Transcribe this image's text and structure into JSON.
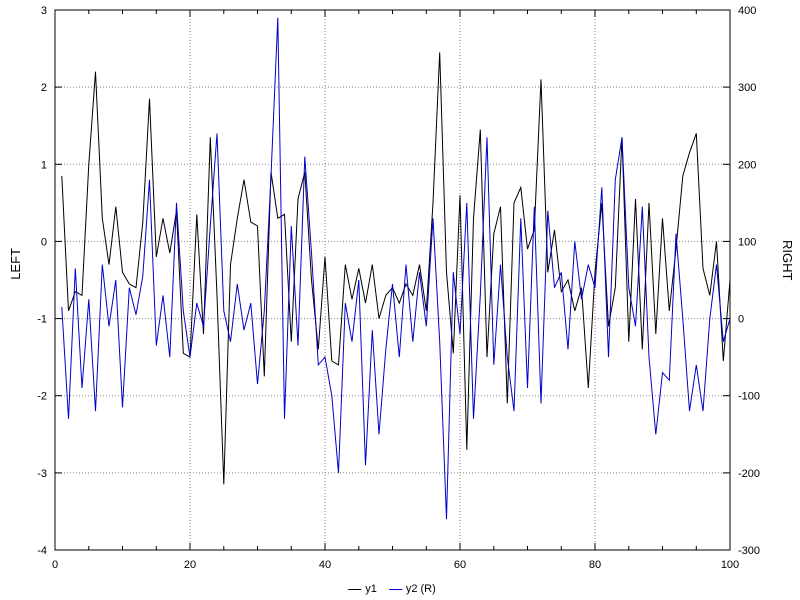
{
  "chart_data": {
    "type": "line",
    "x": [
      1,
      2,
      3,
      4,
      5,
      6,
      7,
      8,
      9,
      10,
      11,
      12,
      13,
      14,
      15,
      16,
      17,
      18,
      19,
      20,
      21,
      22,
      23,
      24,
      25,
      26,
      27,
      28,
      29,
      30,
      31,
      32,
      33,
      34,
      35,
      36,
      37,
      38,
      39,
      40,
      41,
      42,
      43,
      44,
      45,
      46,
      47,
      48,
      49,
      50,
      51,
      52,
      53,
      54,
      55,
      56,
      57,
      58,
      59,
      60,
      61,
      62,
      63,
      64,
      65,
      66,
      67,
      68,
      69,
      70,
      71,
      72,
      73,
      74,
      75,
      76,
      77,
      78,
      79,
      80,
      81,
      82,
      83,
      84,
      85,
      86,
      87,
      88,
      89,
      90,
      91,
      92,
      93,
      94,
      95,
      96,
      97,
      98,
      99,
      100
    ],
    "series": [
      {
        "name": "y1",
        "axis": "left",
        "color": "#000000",
        "values": [
          0.85,
          -0.9,
          -0.65,
          -0.7,
          1.0,
          2.2,
          0.3,
          -0.3,
          0.45,
          -0.4,
          -0.55,
          -0.6,
          0.25,
          1.85,
          -0.2,
          0.3,
          -0.15,
          0.4,
          -1.45,
          -1.5,
          0.35,
          -1.2,
          1.35,
          -0.7,
          -3.15,
          -0.3,
          0.3,
          0.8,
          0.25,
          0.2,
          -1.75,
          0.9,
          0.3,
          0.35,
          -1.3,
          0.55,
          0.9,
          -0.5,
          -1.4,
          -0.2,
          -1.55,
          -1.6,
          -0.3,
          -0.75,
          -0.35,
          -0.8,
          -0.3,
          -1.0,
          -0.7,
          -0.6,
          -0.8,
          -0.55,
          -0.7,
          -0.3,
          -0.9,
          0.5,
          2.45,
          -0.4,
          -1.45,
          0.6,
          -2.7,
          0.3,
          1.45,
          -1.5,
          0.1,
          0.45,
          -2.1,
          0.5,
          0.7,
          -0.1,
          0.15,
          2.1,
          -0.4,
          0.15,
          -0.65,
          -0.5,
          -0.9,
          -0.6,
          -1.9,
          -0.4,
          0.5,
          -1.1,
          -0.6,
          1.35,
          -1.3,
          0.55,
          -1.4,
          0.5,
          -1.2,
          0.3,
          -0.9,
          -0.1,
          0.85,
          1.15,
          1.4,
          -0.35,
          -0.7,
          0.0,
          -1.55,
          -0.5
        ]
      },
      {
        "name": "y2 (R)",
        "axis": "right",
        "color": "#0000cc",
        "values": [
          15,
          -130,
          65,
          -90,
          25,
          -120,
          70,
          -10,
          50,
          -115,
          40,
          5,
          55,
          180,
          -35,
          30,
          -50,
          150,
          10,
          -50,
          20,
          -10,
          120,
          240,
          10,
          -30,
          45,
          -15,
          20,
          -85,
          10,
          185,
          390,
          -130,
          120,
          -35,
          210,
          85,
          -60,
          -50,
          -100,
          -200,
          20,
          -30,
          50,
          -190,
          -15,
          -150,
          -40,
          45,
          -50,
          70,
          -30,
          60,
          -10,
          130,
          -30,
          -260,
          60,
          -20,
          150,
          -130,
          30,
          235,
          -60,
          70,
          -50,
          -120,
          130,
          -90,
          145,
          -110,
          140,
          40,
          60,
          -40,
          100,
          25,
          70,
          40,
          170,
          -50,
          180,
          235,
          40,
          -10,
          145,
          -50,
          -150,
          -70,
          -80,
          110,
          0,
          -120,
          -60,
          -120,
          0,
          70,
          -30,
          0
        ]
      }
    ],
    "x_axis": {
      "min": 0,
      "max": 100,
      "ticks": [
        0,
        20,
        40,
        60,
        80,
        100
      ],
      "minor_step": 5
    },
    "left_axis": {
      "label": "LEFT",
      "min": -4,
      "max": 3,
      "ticks": [
        -4,
        -3,
        -2,
        -1,
        0,
        1,
        2,
        3
      ]
    },
    "right_axis": {
      "label": "RIGHT",
      "min": -300,
      "max": 400,
      "ticks": [
        -300,
        -200,
        -100,
        0,
        100,
        200,
        300,
        400
      ]
    },
    "legend": [
      {
        "label": "y1",
        "color": "#000000"
      },
      {
        "label": "y2 (R)",
        "color": "#0000cc"
      }
    ],
    "grid": "dotted",
    "colors": {
      "background": "#ffffff",
      "grid": "#8a8a8a",
      "border": "#000000"
    }
  }
}
